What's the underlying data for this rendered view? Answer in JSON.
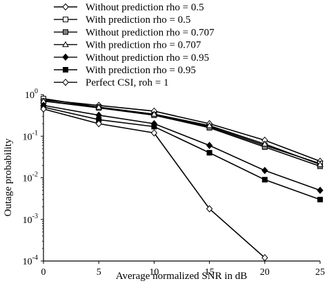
{
  "chart_data": {
    "type": "line",
    "xlabel": "Average normalized SNR in dB",
    "ylabel": "Outage probability",
    "xlim": [
      0,
      25
    ],
    "ylim": [
      0.0001,
      1
    ],
    "yscale": "log",
    "x_ticks": [
      0,
      5,
      10,
      15,
      20,
      25
    ],
    "x_tick_labels": [
      "0",
      "5",
      "10",
      "15",
      "20",
      "25"
    ],
    "y_ticks": [
      1,
      0.1,
      0.01,
      0.001,
      0.0001
    ],
    "y_tick_labels": [
      {
        "base": "10",
        "exp": "0"
      },
      {
        "base": "10",
        "exp": "-1"
      },
      {
        "base": "10",
        "exp": "-2"
      },
      {
        "base": "10",
        "exp": "-3"
      },
      {
        "base": "10",
        "exp": "-4"
      }
    ],
    "grid": false,
    "legend_position": "top-center",
    "series": [
      {
        "name": "Without prediction rho = 0.5",
        "marker": "diamond-open",
        "color": "#000000",
        "x": [
          0,
          5,
          10,
          15,
          20,
          25
        ],
        "y": [
          0.75,
          0.55,
          0.4,
          0.2,
          0.08,
          0.025
        ]
      },
      {
        "name": "With prediction rho = 0.5",
        "marker": "square-open",
        "color": "#000000",
        "x": [
          0,
          5,
          10,
          15,
          20,
          25
        ],
        "y": [
          0.8,
          0.5,
          0.33,
          0.17,
          0.06,
          0.022
        ]
      },
      {
        "name": "Without prediction rho = 0.707",
        "marker": "square-gray",
        "color": "#000000",
        "x": [
          0,
          5,
          10,
          15,
          20,
          25
        ],
        "y": [
          0.7,
          0.48,
          0.32,
          0.16,
          0.055,
          0.019
        ]
      },
      {
        "name": "With prediction rho = 0.707",
        "marker": "triangle-open",
        "color": "#000000",
        "x": [
          0,
          5,
          10,
          15,
          20,
          25
        ],
        "y": [
          0.7,
          0.5,
          0.34,
          0.18,
          0.065,
          0.021
        ]
      },
      {
        "name": "Without prediction rho = 0.95",
        "marker": "diamond-filled",
        "color": "#000000",
        "x": [
          0,
          5,
          10,
          15,
          20,
          25
        ],
        "y": [
          0.55,
          0.32,
          0.2,
          0.06,
          0.015,
          0.005
        ]
      },
      {
        "name": "With prediction rho = 0.95",
        "marker": "square-filled",
        "color": "#000000",
        "x": [
          0,
          5,
          10,
          15,
          20,
          25
        ],
        "y": [
          0.5,
          0.25,
          0.17,
          0.04,
          0.009,
          0.003
        ]
      },
      {
        "name": "Perfect CSI, roh = 1",
        "marker": "diamond-open",
        "color": "#000000",
        "x": [
          0,
          5,
          10,
          15,
          20
        ],
        "y": [
          0.45,
          0.2,
          0.12,
          0.0018,
          0.00012
        ]
      }
    ]
  }
}
